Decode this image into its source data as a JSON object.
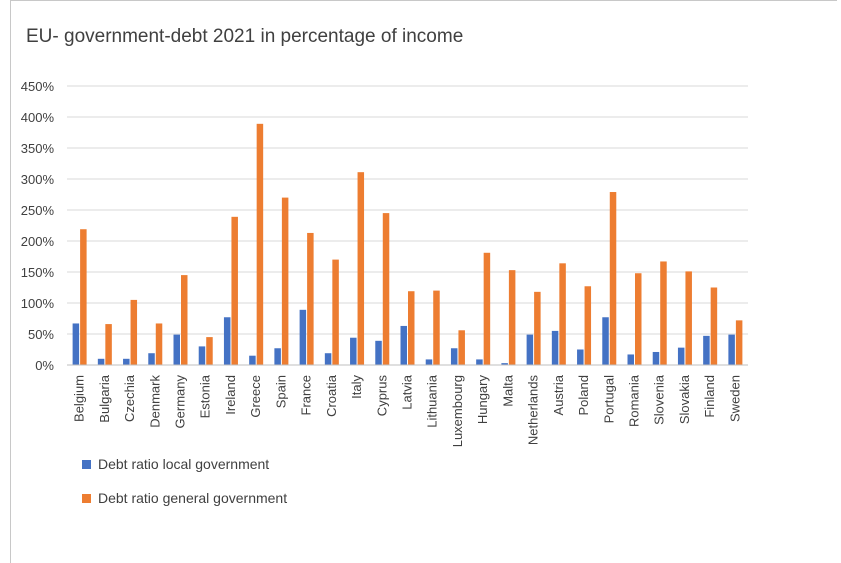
{
  "chart_data": {
    "type": "bar",
    "title": "EU- government-debt 2021 in percentage of income",
    "xlabel": "",
    "ylabel": "",
    "ylim": [
      0,
      450
    ],
    "y_ticks": [
      "0%",
      "50%",
      "100%",
      "150%",
      "200%",
      "250%",
      "300%",
      "350%",
      "400%",
      "450%"
    ],
    "grid": true,
    "legend_position": "bottom-left",
    "categories": [
      "Belgium",
      "Bulgaria",
      "Czechia",
      "Denmark",
      "Germany",
      "Estonia",
      "Ireland",
      "Greece",
      "Spain",
      "France",
      "Croatia",
      "Italy",
      "Cyprus",
      "Latvia",
      "Lithuania",
      "Luxembourg",
      "Hungary",
      "Malta",
      "Netherlands",
      "Austria",
      "Poland",
      "Portugal",
      "Romania",
      "Slovenia",
      "Slovakia",
      "Finland",
      "Sweden"
    ],
    "series": [
      {
        "name": "Debt ratio local government",
        "color": "#4472C4",
        "values": [
          67,
          10,
          10,
          19,
          49,
          30,
          77,
          15,
          27,
          89,
          19,
          44,
          39,
          63,
          9,
          27,
          9,
          3,
          49,
          55,
          25,
          77,
          17,
          21,
          28,
          47,
          49
        ]
      },
      {
        "name": "Debt ratio general government",
        "color": "#ED7D31",
        "values": [
          219,
          66,
          105,
          67,
          145,
          45,
          239,
          389,
          270,
          213,
          170,
          311,
          245,
          119,
          120,
          56,
          181,
          153,
          118,
          164,
          127,
          279,
          148,
          167,
          151,
          125,
          72
        ]
      }
    ]
  }
}
